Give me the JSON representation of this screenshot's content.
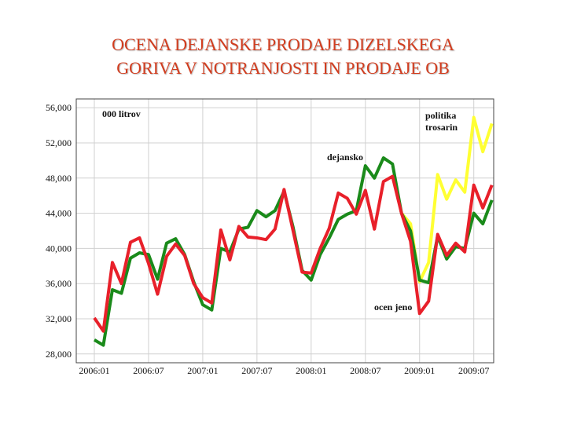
{
  "chart_data": {
    "type": "line",
    "title": [
      "OCENA DEJANSKE PRODAJE DIZELSKEGA",
      "GORIVA V NOTRANJOSTI IN PRODAJE OB"
    ],
    "x": [
      0,
      1,
      2,
      3,
      4,
      5,
      6,
      7,
      8,
      9,
      10,
      11,
      12,
      13,
      14,
      15,
      16,
      17,
      18,
      19,
      20,
      21,
      22,
      23,
      24,
      25,
      26,
      27,
      28,
      29,
      30,
      31,
      32,
      33,
      34,
      35,
      36,
      37,
      38,
      39,
      40,
      41,
      42,
      43,
      44
    ],
    "xlim": [
      -2,
      44.2
    ],
    "xticks": [
      {
        "value": 0,
        "label": "2006:01"
      },
      {
        "value": 6,
        "label": "2006:07"
      },
      {
        "value": 12,
        "label": "2007:01"
      },
      {
        "value": 18,
        "label": "2007:07"
      },
      {
        "value": 24,
        "label": "2008:01"
      },
      {
        "value": 30,
        "label": "2008:07"
      },
      {
        "value": 36,
        "label": "2009:01"
      },
      {
        "value": 42,
        "label": "2009:07"
      }
    ],
    "ylim": [
      27000,
      57000
    ],
    "yticks": [
      {
        "value": 28000,
        "label": "28,000"
      },
      {
        "value": 32000,
        "label": "32,000"
      },
      {
        "value": 36000,
        "label": "36,000"
      },
      {
        "value": 40000,
        "label": "40,000"
      },
      {
        "value": 44000,
        "label": "44,000"
      },
      {
        "value": 48000,
        "label": "48,000"
      },
      {
        "value": 52000,
        "label": "52,000"
      },
      {
        "value": 56000,
        "label": "56,000"
      }
    ],
    "grid": true,
    "series": [
      {
        "color": "#ffff33",
        "values": [
          null,
          null,
          null,
          null,
          null,
          null,
          null,
          null,
          null,
          null,
          null,
          null,
          null,
          null,
          null,
          null,
          null,
          null,
          null,
          null,
          null,
          null,
          null,
          null,
          null,
          null,
          null,
          null,
          null,
          null,
          null,
          null,
          null,
          null,
          44000,
          42800,
          36200,
          38400,
          48400,
          45600,
          47800,
          46400,
          54900,
          51000,
          54200
        ]
      },
      {
        "color": "#1a8a1a",
        "values": [
          29600,
          29000,
          35300,
          34900,
          38900,
          39500,
          39300,
          36500,
          40600,
          41100,
          39300,
          36200,
          33600,
          33000,
          40000,
          39600,
          42200,
          42400,
          44300,
          43600,
          44300,
          46500,
          42400,
          37500,
          36400,
          39300,
          41200,
          43300,
          43900,
          44300,
          49400,
          48000,
          50300,
          49600,
          44000,
          42000,
          36400,
          36100,
          41400,
          38800,
          40200,
          40000,
          44000,
          42800,
          45500
        ]
      },
      {
        "color": "#e8202a",
        "values": [
          32100,
          30600,
          38400,
          36000,
          40700,
          41200,
          38300,
          34800,
          39100,
          40500,
          39200,
          36000,
          34400,
          33800,
          42100,
          38700,
          42500,
          41300,
          41200,
          41000,
          42200,
          46700,
          42000,
          37300,
          37200,
          40000,
          42300,
          46300,
          45700,
          43900,
          46600,
          42200,
          47600,
          48200,
          44000,
          40800,
          32600,
          34000,
          41600,
          39200,
          40600,
          39600,
          47200,
          44600,
          47200
        ]
      }
    ],
    "annotations": [
      "000 litrov",
      "dejansko",
      "politika",
      "trosarin",
      "ocen jeno"
    ]
  }
}
